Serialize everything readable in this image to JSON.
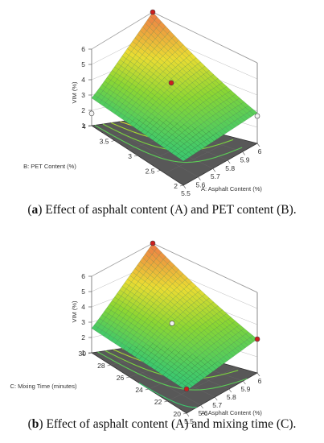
{
  "chart_data": [
    {
      "type": "surface",
      "caption_letter": "a",
      "caption_text": "Effect of asphalt content (A) and PET content (B).",
      "zlabel": "VIM (%)",
      "xlabel": "A: Asphalt Content (%)",
      "ylabel": "B: PET Content  (%)",
      "zticks": [
        "1",
        "2",
        "3",
        "4",
        "5",
        "6"
      ],
      "xticks": [
        "5.5",
        "5.6",
        "5.7",
        "5.8",
        "5.9",
        "6"
      ],
      "yticks": [
        "2",
        "2.5",
        "3",
        "3.5",
        "4"
      ],
      "zlim": [
        1,
        6
      ],
      "xlim": [
        5.5,
        6
      ],
      "ylim": [
        2,
        4
      ],
      "corner_values": {
        "x_min_y_min": 2.5,
        "x_max_y_min": 2.9,
        "x_min_y_max": 2.8,
        "x_max_y_max": 6.0
      },
      "design_points": [
        {
          "x": 5.5,
          "y": 4,
          "z": 1.8
        },
        {
          "x": 5.75,
          "y": 3,
          "z": 4.5
        },
        {
          "x": 6,
          "y": 4,
          "z": 6.0
        },
        {
          "x": 6,
          "y": 2,
          "z": 2.7
        }
      ]
    },
    {
      "type": "surface",
      "caption_letter": "b",
      "caption_text": "Effect of asphalt content (A) and mixing time (C).",
      "zlabel": "VIM (%)",
      "xlabel": "A: Asphalt Content (%)",
      "ylabel": "C: Mixing Time (minutes)",
      "zticks": [
        "1",
        "2",
        "3",
        "4",
        "5",
        "6"
      ],
      "xticks": [
        "5.5",
        "5.6",
        "5.7",
        "5.8",
        "5.9",
        "6"
      ],
      "yticks": [
        "20",
        "22",
        "24",
        "26",
        "28",
        "30"
      ],
      "zlim": [
        1,
        6
      ],
      "xlim": [
        5.5,
        6
      ],
      "ylim": [
        20,
        30
      ],
      "corner_values": {
        "x_min_y_min": 2.4,
        "x_max_y_min": 3.1,
        "x_min_y_max": 2.6,
        "x_max_y_max": 6.0
      },
      "design_points": [
        {
          "x": 5.5,
          "y": 20,
          "z": 2.5
        },
        {
          "x": 5.75,
          "y": 25,
          "z": 3.8
        },
        {
          "x": 6,
          "y": 30,
          "z": 6.0
        },
        {
          "x": 6,
          "y": 20,
          "z": 3.1
        }
      ]
    }
  ]
}
